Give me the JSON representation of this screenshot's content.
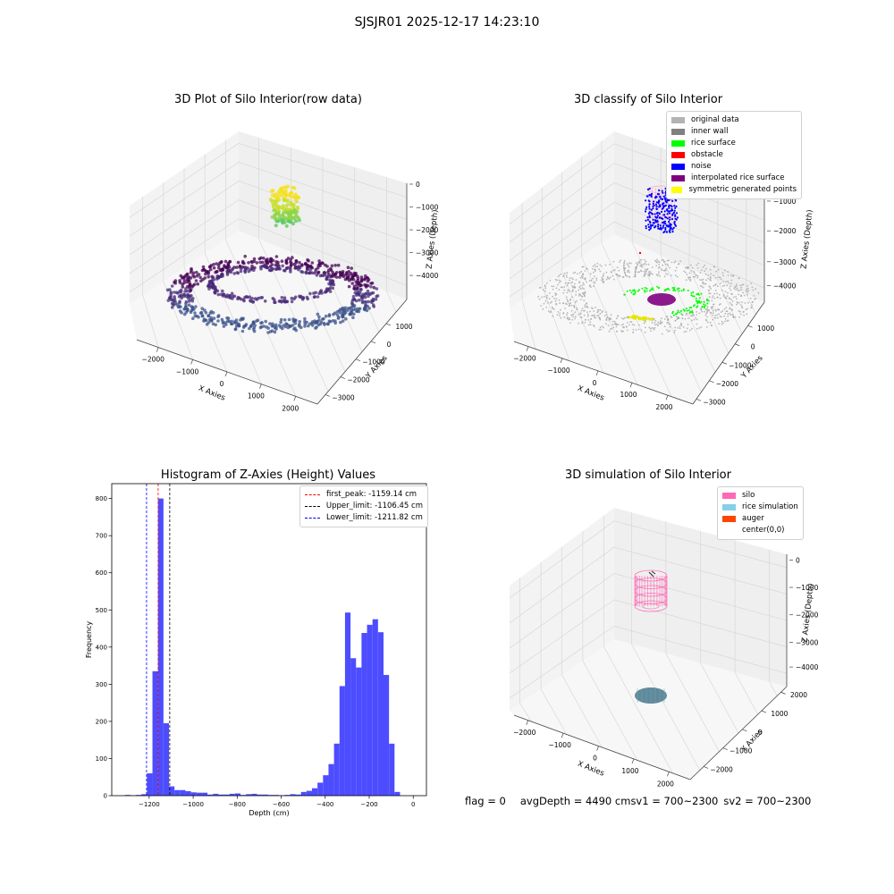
{
  "figure_title": "SJSJR01 2025-12-17 14:23:10",
  "status": {
    "flag": "flag = 0",
    "avg_depth": "avgDepth = 4490 cm",
    "sv1": "sv1 = 700~2300",
    "sv2": "sv2 = 700~2300"
  },
  "colors": {
    "original_data": "#b3b3b3",
    "inner_wall": "#808080",
    "rice_surface": "#00ff00",
    "obstacle": "#ff0000",
    "noise": "#0000ff",
    "interpolated_rice_surface": "#800080",
    "symmetric_generated_points": "#ffff00",
    "silo": "#ff69b4",
    "rice_simulation": "#87ceeb",
    "auger": "#ff4500",
    "histogram_bar": "#4d4dff",
    "first_peak_line": "#ff0000",
    "upper_limit_line": "#000000",
    "lower_limit_line": "#0000ff"
  },
  "chart_data": [
    {
      "type": "scatter",
      "subtype": "3d-scatter",
      "title": "3D Plot of Silo Interior(row data)",
      "xlabel": "X Axies",
      "ylabel": "Y Axies",
      "zlabel": "Z Axies (Depth)",
      "xticks": [
        "−2000",
        "−1000",
        "0",
        "1000",
        "2000"
      ],
      "yticks": [
        "1000",
        "0",
        "−1000",
        "−2000",
        "−3000"
      ],
      "zticks": [
        "0",
        "−1000",
        "−2000",
        "−3000",
        "−4000"
      ],
      "colormap": "viridis"
    },
    {
      "type": "scatter",
      "subtype": "3d-scatter",
      "title": "3D classify of Silo Interior",
      "xlabel": "X Axies",
      "ylabel": "Y Axies",
      "zlabel": "Z Axies (Depth)",
      "xticks": [
        "−2000",
        "−1000",
        "0",
        "1000",
        "2000"
      ],
      "yticks": [
        "1000",
        "0",
        "−1000",
        "−2000",
        "−3000"
      ],
      "zticks": [
        "−1000",
        "−2000",
        "−3000",
        "−4000"
      ],
      "legend": [
        "original data",
        "inner wall",
        "rice surface",
        "obstacle",
        "noise",
        "interpolated rice surface",
        "symmetric generated points"
      ],
      "legend_position": "upper-right"
    },
    {
      "type": "bar",
      "subtype": "histogram",
      "title": "Histogram of Z-Axies (Height) Values",
      "xlabel": "Depth (cm)",
      "ylabel": "Frequency",
      "xlim": [
        -1370,
        60
      ],
      "ylim": [
        0,
        840
      ],
      "bin_width": 25,
      "xticks": [
        -1200,
        -1000,
        -800,
        -600,
        -400,
        -200,
        0
      ],
      "yticks": [
        0,
        100,
        200,
        300,
        400,
        500,
        600,
        700,
        800
      ],
      "bins": [
        {
          "x": -1310,
          "v": 2
        },
        {
          "x": -1285,
          "v": 1
        },
        {
          "x": -1260,
          "v": 2
        },
        {
          "x": -1235,
          "v": 4
        },
        {
          "x": -1210,
          "v": 60
        },
        {
          "x": -1185,
          "v": 335
        },
        {
          "x": -1160,
          "v": 800
        },
        {
          "x": -1135,
          "v": 195
        },
        {
          "x": -1110,
          "v": 25
        },
        {
          "x": -1085,
          "v": 15
        },
        {
          "x": -1060,
          "v": 15
        },
        {
          "x": -1035,
          "v": 12
        },
        {
          "x": -1010,
          "v": 9
        },
        {
          "x": -985,
          "v": 8
        },
        {
          "x": -960,
          "v": 8
        },
        {
          "x": -935,
          "v": 3
        },
        {
          "x": -910,
          "v": 5
        },
        {
          "x": -885,
          "v": 3
        },
        {
          "x": -860,
          "v": 3
        },
        {
          "x": -835,
          "v": 5
        },
        {
          "x": -810,
          "v": 6
        },
        {
          "x": -785,
          "v": 2
        },
        {
          "x": -760,
          "v": 4
        },
        {
          "x": -735,
          "v": 5
        },
        {
          "x": -710,
          "v": 3
        },
        {
          "x": -685,
          "v": 3
        },
        {
          "x": -660,
          "v": 2
        },
        {
          "x": -635,
          "v": 2
        },
        {
          "x": -610,
          "v": 1
        },
        {
          "x": -585,
          "v": 2
        },
        {
          "x": -560,
          "v": 4
        },
        {
          "x": -535,
          "v": 3
        },
        {
          "x": -510,
          "v": 10
        },
        {
          "x": -485,
          "v": 13
        },
        {
          "x": -460,
          "v": 20
        },
        {
          "x": -435,
          "v": 35
        },
        {
          "x": -410,
          "v": 55
        },
        {
          "x": -385,
          "v": 85
        },
        {
          "x": -360,
          "v": 140
        },
        {
          "x": -335,
          "v": 295
        },
        {
          "x": -310,
          "v": 493
        },
        {
          "x": -285,
          "v": 370
        },
        {
          "x": -260,
          "v": 345
        },
        {
          "x": -235,
          "v": 438
        },
        {
          "x": -210,
          "v": 460
        },
        {
          "x": -185,
          "v": 475
        },
        {
          "x": -160,
          "v": 440
        },
        {
          "x": -135,
          "v": 325
        },
        {
          "x": -110,
          "v": 140
        },
        {
          "x": -85,
          "v": 10
        }
      ],
      "lines": [
        {
          "name": "first_peak: -1159.14 cm",
          "x": -1159.14,
          "color": "#ff0000"
        },
        {
          "name": "Upper_limit: -1106.45 cm",
          "x": -1106.45,
          "color": "#000000"
        },
        {
          "name": "Lower_limit: -1211.82 cm",
          "x": -1211.82,
          "color": "#0000ff"
        }
      ],
      "legend_position": "upper-right"
    },
    {
      "type": "scatter",
      "subtype": "3d-surface",
      "title": "3D simulation of Silo Interior",
      "xlabel": "X Axies",
      "ylabel": "Y Axies",
      "zlabel": "Z Axies (Depth)",
      "xticks": [
        "−2000",
        "−1000",
        "0",
        "1000",
        "2000"
      ],
      "yticks": [
        "2000",
        "1000",
        "0",
        "−1000",
        "−2000"
      ],
      "zticks": [
        "0",
        "−1000",
        "−2000",
        "−3000",
        "−4000"
      ],
      "legend": [
        "silo",
        "rice simulation",
        "auger",
        "center(0,0)"
      ],
      "legend_position": "upper-right"
    }
  ]
}
